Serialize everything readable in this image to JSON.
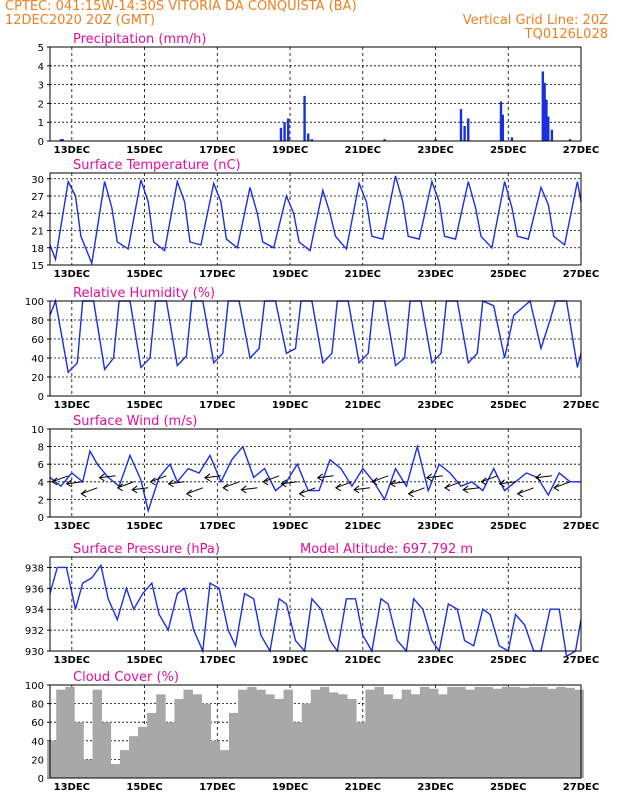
{
  "header": {
    "line1_left": "CPTEC:   041:15W-14:30S   VITORIA DA CONQUISTA (BA)",
    "line2_left": "12DEC2020 20Z (GMT)",
    "line2_right": "Vertical Grid Line: 20Z",
    "line3_right": "TQ0126L028",
    "model_altitude": "Model Altitude: 697.792 m"
  },
  "colors": {
    "header": "#f08020",
    "title": "#e0109a",
    "series": "#1a2fe0",
    "cloud": "#a8a8a8"
  },
  "x_ticks": [
    "13DEC",
    "15DEC",
    "17DEC",
    "19DEC",
    "21DEC",
    "23DEC",
    "25DEC",
    "27DEC"
  ],
  "chart_data": [
    {
      "type": "bar",
      "title": "Precipitation (mm/h)",
      "ylim": [
        0,
        5
      ],
      "yticks": [
        0,
        1,
        2,
        3,
        4,
        5
      ],
      "x_range_days": [
        0,
        14.6
      ],
      "x": [
        0.3,
        0.35,
        6.35,
        6.45,
        6.55,
        7.0,
        7.1,
        7.2,
        9.2,
        10.6,
        11.3,
        11.4,
        11.5,
        12.4,
        12.45,
        12.7,
        13.55,
        13.6,
        13.65,
        13.7,
        13.8,
        14.3
      ],
      "values": [
        0.1,
        0.1,
        0.7,
        1.0,
        1.2,
        2.4,
        0.4,
        0.1,
        0.1,
        0.1,
        1.7,
        0.8,
        1.2,
        2.1,
        1.4,
        0.2,
        3.7,
        3.1,
        2.2,
        1.3,
        0.6,
        0.1
      ]
    },
    {
      "type": "line",
      "title": "Surface Temperature (nC)",
      "ylim": [
        15,
        31
      ],
      "yticks": [
        15,
        18,
        21,
        24,
        27,
        30
      ],
      "series": [
        {
          "x": [
            0,
            0.15,
            0.5,
            0.7,
            0.85,
            1.15,
            1.5,
            1.7,
            1.85,
            2.15,
            2.5,
            2.7,
            2.85,
            3.15,
            3.5,
            3.7,
            3.85,
            4.15,
            4.5,
            4.7,
            4.85,
            5.15,
            5.5,
            5.7,
            5.85,
            6.15,
            6.5,
            6.7,
            6.85,
            7.15,
            7.5,
            7.7,
            7.85,
            8.15,
            8.5,
            8.7,
            8.85,
            9.15,
            9.5,
            9.7,
            9.85,
            10.15,
            10.5,
            10.7,
            10.85,
            11.15,
            11.5,
            11.7,
            11.85,
            12.15,
            12.5,
            12.7,
            12.85,
            13.15,
            13.5,
            13.7,
            13.85,
            14.15,
            14.5,
            14.6
          ],
          "values": [
            18.5,
            16,
            29.5,
            27,
            20,
            15.3,
            29.5,
            25,
            19,
            17.8,
            29.8,
            26,
            19,
            17.5,
            29.5,
            26,
            19,
            18.5,
            29.2,
            26,
            19.5,
            18,
            28.5,
            24,
            19,
            18,
            27,
            24,
            19,
            17.5,
            28,
            24,
            20,
            17.8,
            29.2,
            26,
            20,
            19.5,
            30.5,
            26,
            20,
            19.5,
            29.5,
            26,
            20,
            19.5,
            29.5,
            25,
            20,
            18,
            29.5,
            25,
            20,
            19.5,
            28.5,
            25.5,
            20,
            18.5,
            29.5,
            26
          ]
        }
      ]
    },
    {
      "type": "line",
      "title": "Relative Humidity (%)",
      "ylim": [
        0,
        100
      ],
      "yticks": [
        0,
        20,
        40,
        60,
        80,
        100
      ],
      "series": [
        {
          "x": [
            0,
            0.15,
            0.5,
            0.75,
            0.9,
            1.2,
            1.5,
            1.75,
            1.9,
            2.2,
            2.5,
            2.75,
            2.9,
            3.2,
            3.5,
            3.75,
            3.9,
            4.2,
            4.5,
            4.75,
            4.9,
            5.2,
            5.5,
            5.75,
            5.9,
            6.2,
            6.5,
            6.75,
            6.9,
            7.2,
            7.5,
            7.75,
            7.9,
            8.2,
            8.5,
            8.75,
            8.9,
            9.2,
            9.5,
            9.75,
            9.9,
            10.2,
            10.5,
            10.75,
            10.9,
            11.2,
            11.5,
            11.75,
            11.9,
            12.2,
            12.5,
            12.75,
            12.9,
            13.2,
            13.5,
            13.75,
            13.9,
            14.2,
            14.5,
            14.6
          ],
          "values": [
            85,
            100,
            25,
            35,
            100,
            100,
            28,
            40,
            100,
            100,
            30,
            40,
            100,
            100,
            32,
            42,
            100,
            100,
            35,
            45,
            100,
            100,
            40,
            50,
            100,
            100,
            45,
            50,
            100,
            100,
            35,
            45,
            100,
            100,
            35,
            45,
            100,
            100,
            32,
            40,
            100,
            100,
            35,
            45,
            100,
            100,
            35,
            45,
            100,
            95,
            40,
            85,
            90,
            100,
            50,
            80,
            100,
            100,
            30,
            45
          ]
        }
      ]
    },
    {
      "type": "line",
      "title": "Surface Wind (m/s)",
      "ylim": [
        0,
        10
      ],
      "yticks": [
        0,
        2,
        4,
        6,
        8,
        10
      ],
      "series": [
        {
          "x": [
            0,
            0.3,
            0.6,
            0.9,
            1.1,
            1.3,
            1.6,
            1.9,
            2.2,
            2.5,
            2.7,
            3.0,
            3.3,
            3.5,
            3.8,
            4.1,
            4.4,
            4.7,
            5.0,
            5.3,
            5.6,
            5.9,
            6.2,
            6.5,
            6.8,
            7.1,
            7.4,
            7.7,
            8.0,
            8.3,
            8.6,
            8.9,
            9.2,
            9.5,
            9.8,
            10.1,
            10.4,
            10.7,
            11.0,
            11.3,
            11.6,
            11.9,
            12.2,
            12.5,
            12.8,
            13.1,
            13.4,
            13.7,
            14.0,
            14.3,
            14.6
          ],
          "values": [
            4.5,
            3.5,
            5,
            4,
            7.5,
            6,
            4.5,
            3.5,
            7,
            4.2,
            0.7,
            4.5,
            6,
            4,
            5.5,
            5,
            7,
            4,
            6.5,
            8,
            4.5,
            5.5,
            3,
            4,
            6,
            3,
            3,
            6.5,
            5.5,
            3.5,
            5.5,
            4,
            2,
            5.5,
            3.5,
            8,
            3,
            6,
            5,
            3.5,
            4,
            3,
            5.5,
            3,
            4,
            5,
            4.5,
            2.5,
            5,
            4,
            4
          ]
        }
      ],
      "vector_times": [
        0.5,
        0.9,
        1.3,
        1.8,
        2.3,
        2.7,
        3.2,
        3.7,
        4.2,
        4.7,
        5.2,
        5.7,
        6.3,
        6.8,
        7.3,
        7.8,
        8.3,
        8.8,
        9.3,
        9.8,
        10.3,
        10.8,
        11.3,
        11.8,
        12.3,
        12.8,
        13.3,
        13.8,
        14.3
      ]
    },
    {
      "type": "line",
      "title": "Surface Pressure (hPa)",
      "ylim": [
        930,
        939
      ],
      "yticks": [
        930,
        932,
        934,
        936,
        938
      ],
      "series": [
        {
          "x": [
            0,
            0.2,
            0.45,
            0.7,
            0.9,
            1.15,
            1.4,
            1.6,
            1.85,
            2.1,
            2.3,
            2.55,
            2.8,
            3.0,
            3.25,
            3.5,
            3.7,
            3.95,
            4.2,
            4.4,
            4.65,
            4.9,
            5.1,
            5.35,
            5.6,
            5.8,
            6.05,
            6.3,
            6.5,
            6.75,
            7.0,
            7.2,
            7.45,
            7.7,
            7.9,
            8.15,
            8.4,
            8.6,
            8.85,
            9.1,
            9.3,
            9.55,
            9.8,
            10.0,
            10.25,
            10.5,
            10.7,
            10.95,
            11.2,
            11.4,
            11.65,
            11.9,
            12.1,
            12.35,
            12.6,
            12.8,
            13.05,
            13.3,
            13.5,
            13.75,
            14.0,
            14.2,
            14.45,
            14.6
          ],
          "values": [
            935.5,
            938,
            938,
            934,
            936.5,
            937,
            938.2,
            935,
            933,
            936,
            934,
            935.5,
            936.5,
            933.5,
            932,
            935.5,
            936,
            932,
            930,
            936.5,
            936,
            932,
            930.5,
            935.5,
            935,
            931.5,
            930,
            935,
            934.5,
            931,
            930,
            935,
            934,
            931,
            930,
            935,
            935,
            931.5,
            930,
            935,
            934.5,
            931,
            930,
            935,
            934,
            931,
            930,
            934.5,
            934,
            931,
            930.5,
            934,
            933.5,
            930.5,
            930,
            933.5,
            932.5,
            930,
            930,
            934,
            934,
            929.5,
            930,
            933
          ]
        }
      ]
    },
    {
      "type": "bar",
      "title": "Cloud Cover (%)",
      "ylim": [
        0,
        100
      ],
      "yticks": [
        0,
        20,
        40,
        60,
        80,
        100
      ],
      "x": [
        0.05,
        0.3,
        0.55,
        0.8,
        1.05,
        1.3,
        1.55,
        1.8,
        2.05,
        2.3,
        2.55,
        2.8,
        3.05,
        3.3,
        3.55,
        3.8,
        4.05,
        4.3,
        4.55,
        4.8,
        5.05,
        5.3,
        5.55,
        5.8,
        6.05,
        6.3,
        6.55,
        6.8,
        7.05,
        7.3,
        7.55,
        7.8,
        8.05,
        8.3,
        8.55,
        8.8,
        9.05,
        9.3,
        9.55,
        9.8,
        10.05,
        10.3,
        10.55,
        10.8,
        11.05,
        11.3,
        11.55,
        11.8,
        12.05,
        12.3,
        12.55,
        12.8,
        13.05,
        13.3,
        13.55,
        13.8,
        14.05,
        14.3,
        14.55
      ],
      "values": [
        40,
        95,
        98,
        60,
        20,
        95,
        60,
        15,
        30,
        45,
        55,
        70,
        90,
        60,
        85,
        95,
        90,
        80,
        40,
        30,
        70,
        95,
        98,
        95,
        90,
        85,
        95,
        60,
        80,
        95,
        98,
        92,
        90,
        85,
        60,
        95,
        98,
        90,
        85,
        95,
        90,
        98,
        96,
        90,
        98,
        98,
        95,
        98,
        98,
        96,
        98,
        98,
        97,
        98,
        98,
        96,
        98,
        97,
        95
      ]
    }
  ]
}
